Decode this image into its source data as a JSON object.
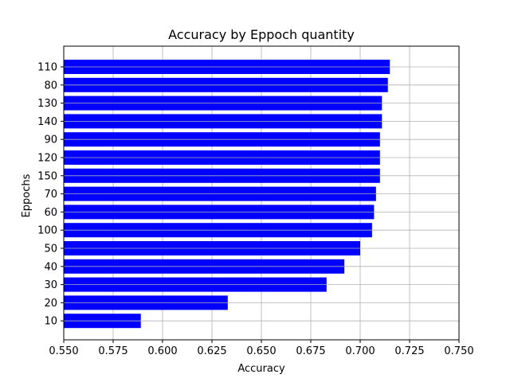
{
  "chart_data": {
    "type": "bar",
    "orientation": "horizontal",
    "title": "Accuracy by Eppoch quantity",
    "xlabel": "Accuracy",
    "ylabel": "Eppochs",
    "xlim": [
      0.55,
      0.75
    ],
    "xticks": [
      0.55,
      0.575,
      0.6,
      0.625,
      0.65,
      0.675,
      0.7,
      0.725,
      0.75
    ],
    "xtick_labels": [
      "0.550",
      "0.575",
      "0.600",
      "0.625",
      "0.650",
      "0.675",
      "0.700",
      "0.725",
      "0.750"
    ],
    "grid": true,
    "legend": "none",
    "bar_color": "#0000ff",
    "grid_color": "#b0b0b0",
    "categories_top_to_bottom": [
      "110",
      "80",
      "130",
      "140",
      "90",
      "120",
      "150",
      "70",
      "60",
      "100",
      "50",
      "40",
      "30",
      "20",
      "10"
    ],
    "values_top_to_bottom": [
      0.715,
      0.714,
      0.711,
      0.711,
      0.71,
      0.71,
      0.71,
      0.708,
      0.707,
      0.706,
      0.7,
      0.692,
      0.683,
      0.633,
      0.589
    ]
  }
}
